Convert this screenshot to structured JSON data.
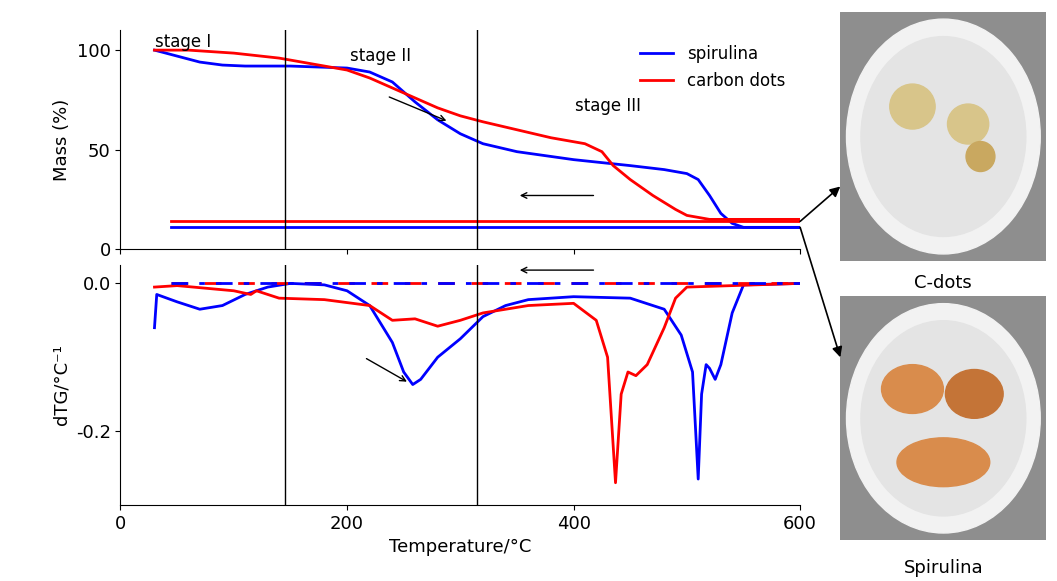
{
  "chart_data": [
    {
      "type": "line",
      "ylabel": "Mass (%)",
      "xlim": [
        0,
        600
      ],
      "xticks": [
        0,
        200,
        400,
        600
      ],
      "tick_labels": "y",
      "ylim": [
        0,
        110
      ],
      "yticks": [
        0,
        50,
        100
      ],
      "legend": "upper right",
      "vlines": [
        145,
        315
      ],
      "annotations": [
        {
          "text": "stage I",
          "x": 55,
          "y": 104
        },
        {
          "text": "stage II",
          "x": 230,
          "y": 97
        },
        {
          "text": "stage III",
          "x": 430,
          "y": 72
        }
      ],
      "arrows": [
        [
          235,
          77,
          290,
          64
        ],
        [
          420,
          27,
          350,
          27
        ]
      ],
      "series": [
        {
          "name": "spirulina",
          "color": "#0000ff",
          "line_style": "solid",
          "x": [
            30,
            50,
            70,
            90,
            110,
            150,
            200,
            220,
            240,
            260,
            280,
            300,
            320,
            350,
            400,
            450,
            480,
            500,
            510,
            520,
            530,
            540,
            550,
            600
          ],
          "values": [
            100,
            97,
            94,
            92.5,
            92,
            92,
            91,
            89,
            84,
            74,
            65,
            58,
            53,
            49,
            45,
            42,
            40,
            38,
            35,
            27,
            18,
            13,
            11,
            11
          ]
        },
        {
          "name": "carbon dots",
          "color": "#ff0000",
          "line_style": "solid",
          "x": [
            30,
            60,
            100,
            140,
            180,
            200,
            220,
            240,
            260,
            280,
            300,
            320,
            350,
            380,
            410,
            425,
            435,
            450,
            470,
            490,
            500,
            520,
            550,
            600
          ],
          "values": [
            100,
            100,
            98.5,
            96,
            92,
            90,
            86,
            81,
            76,
            71,
            67,
            64,
            60,
            56,
            53,
            49,
            42,
            35,
            27,
            20,
            17,
            15,
            15,
            15
          ]
        },
        {
          "color": "#ff0000",
          "line_style": "solid",
          "x": [
            45,
            600
          ],
          "values": [
            14,
            14
          ]
        },
        {
          "color": "#0000ff",
          "line_style": "solid",
          "x": [
            45,
            600
          ],
          "values": [
            11,
            11
          ]
        }
      ]
    },
    {
      "type": "line",
      "xlabel": "Temperature/°C",
      "ylabel": "dTG/°C⁻¹",
      "xlim": [
        0,
        600
      ],
      "xticks": [
        0,
        200,
        400,
        600
      ],
      "ylim": [
        -0.3,
        0.025
      ],
      "yticks": [
        0.0,
        -0.2
      ],
      "vlines": [
        145,
        315
      ],
      "arrows": [
        [
          215,
          -0.1,
          255,
          -0.135
        ],
        [
          420,
          0.018,
          350,
          0.018
        ]
      ],
      "series": [
        {
          "color": "#0000ff",
          "line_style": "solid",
          "x": [
            30,
            32,
            50,
            70,
            90,
            110,
            130,
            150,
            180,
            200,
            220,
            240,
            250,
            258,
            265,
            280,
            300,
            320,
            340,
            360,
            400,
            450,
            480,
            495,
            505,
            510,
            513,
            517,
            520,
            525,
            530,
            540,
            550,
            600
          ],
          "values": [
            -0.06,
            -0.015,
            -0.025,
            -0.035,
            -0.03,
            -0.015,
            -0.005,
            0,
            -0.002,
            -0.01,
            -0.03,
            -0.08,
            -0.12,
            -0.137,
            -0.13,
            -0.1,
            -0.075,
            -0.045,
            -0.03,
            -0.022,
            -0.018,
            -0.02,
            -0.035,
            -0.07,
            -0.12,
            -0.265,
            -0.15,
            -0.11,
            -0.115,
            -0.13,
            -0.11,
            -0.04,
            -0.002,
            0
          ]
        },
        {
          "color": "#ff0000",
          "line_style": "solid",
          "x": [
            30,
            50,
            100,
            115,
            120,
            140,
            180,
            220,
            240,
            260,
            280,
            300,
            320,
            360,
            400,
            420,
            430,
            437,
            442,
            448,
            455,
            465,
            480,
            490,
            500,
            600
          ],
          "values": [
            -0.005,
            -0.003,
            -0.01,
            -0.015,
            -0.01,
            -0.02,
            -0.022,
            -0.03,
            -0.05,
            -0.048,
            -0.058,
            -0.05,
            -0.04,
            -0.03,
            -0.027,
            -0.05,
            -0.1,
            -0.27,
            -0.15,
            -0.12,
            -0.125,
            -0.11,
            -0.06,
            -0.02,
            -0.005,
            0
          ]
        },
        {
          "color": "#ff0000",
          "line_style": "dashed",
          "x": [
            45,
            600
          ],
          "values": [
            0,
            0
          ]
        },
        {
          "color": "#0000ff",
          "line_style": "dashdot",
          "x": [
            45,
            600
          ],
          "values": [
            0,
            0
          ]
        }
      ]
    }
  ],
  "photos": [
    "C-dots",
    "Spirulina"
  ]
}
